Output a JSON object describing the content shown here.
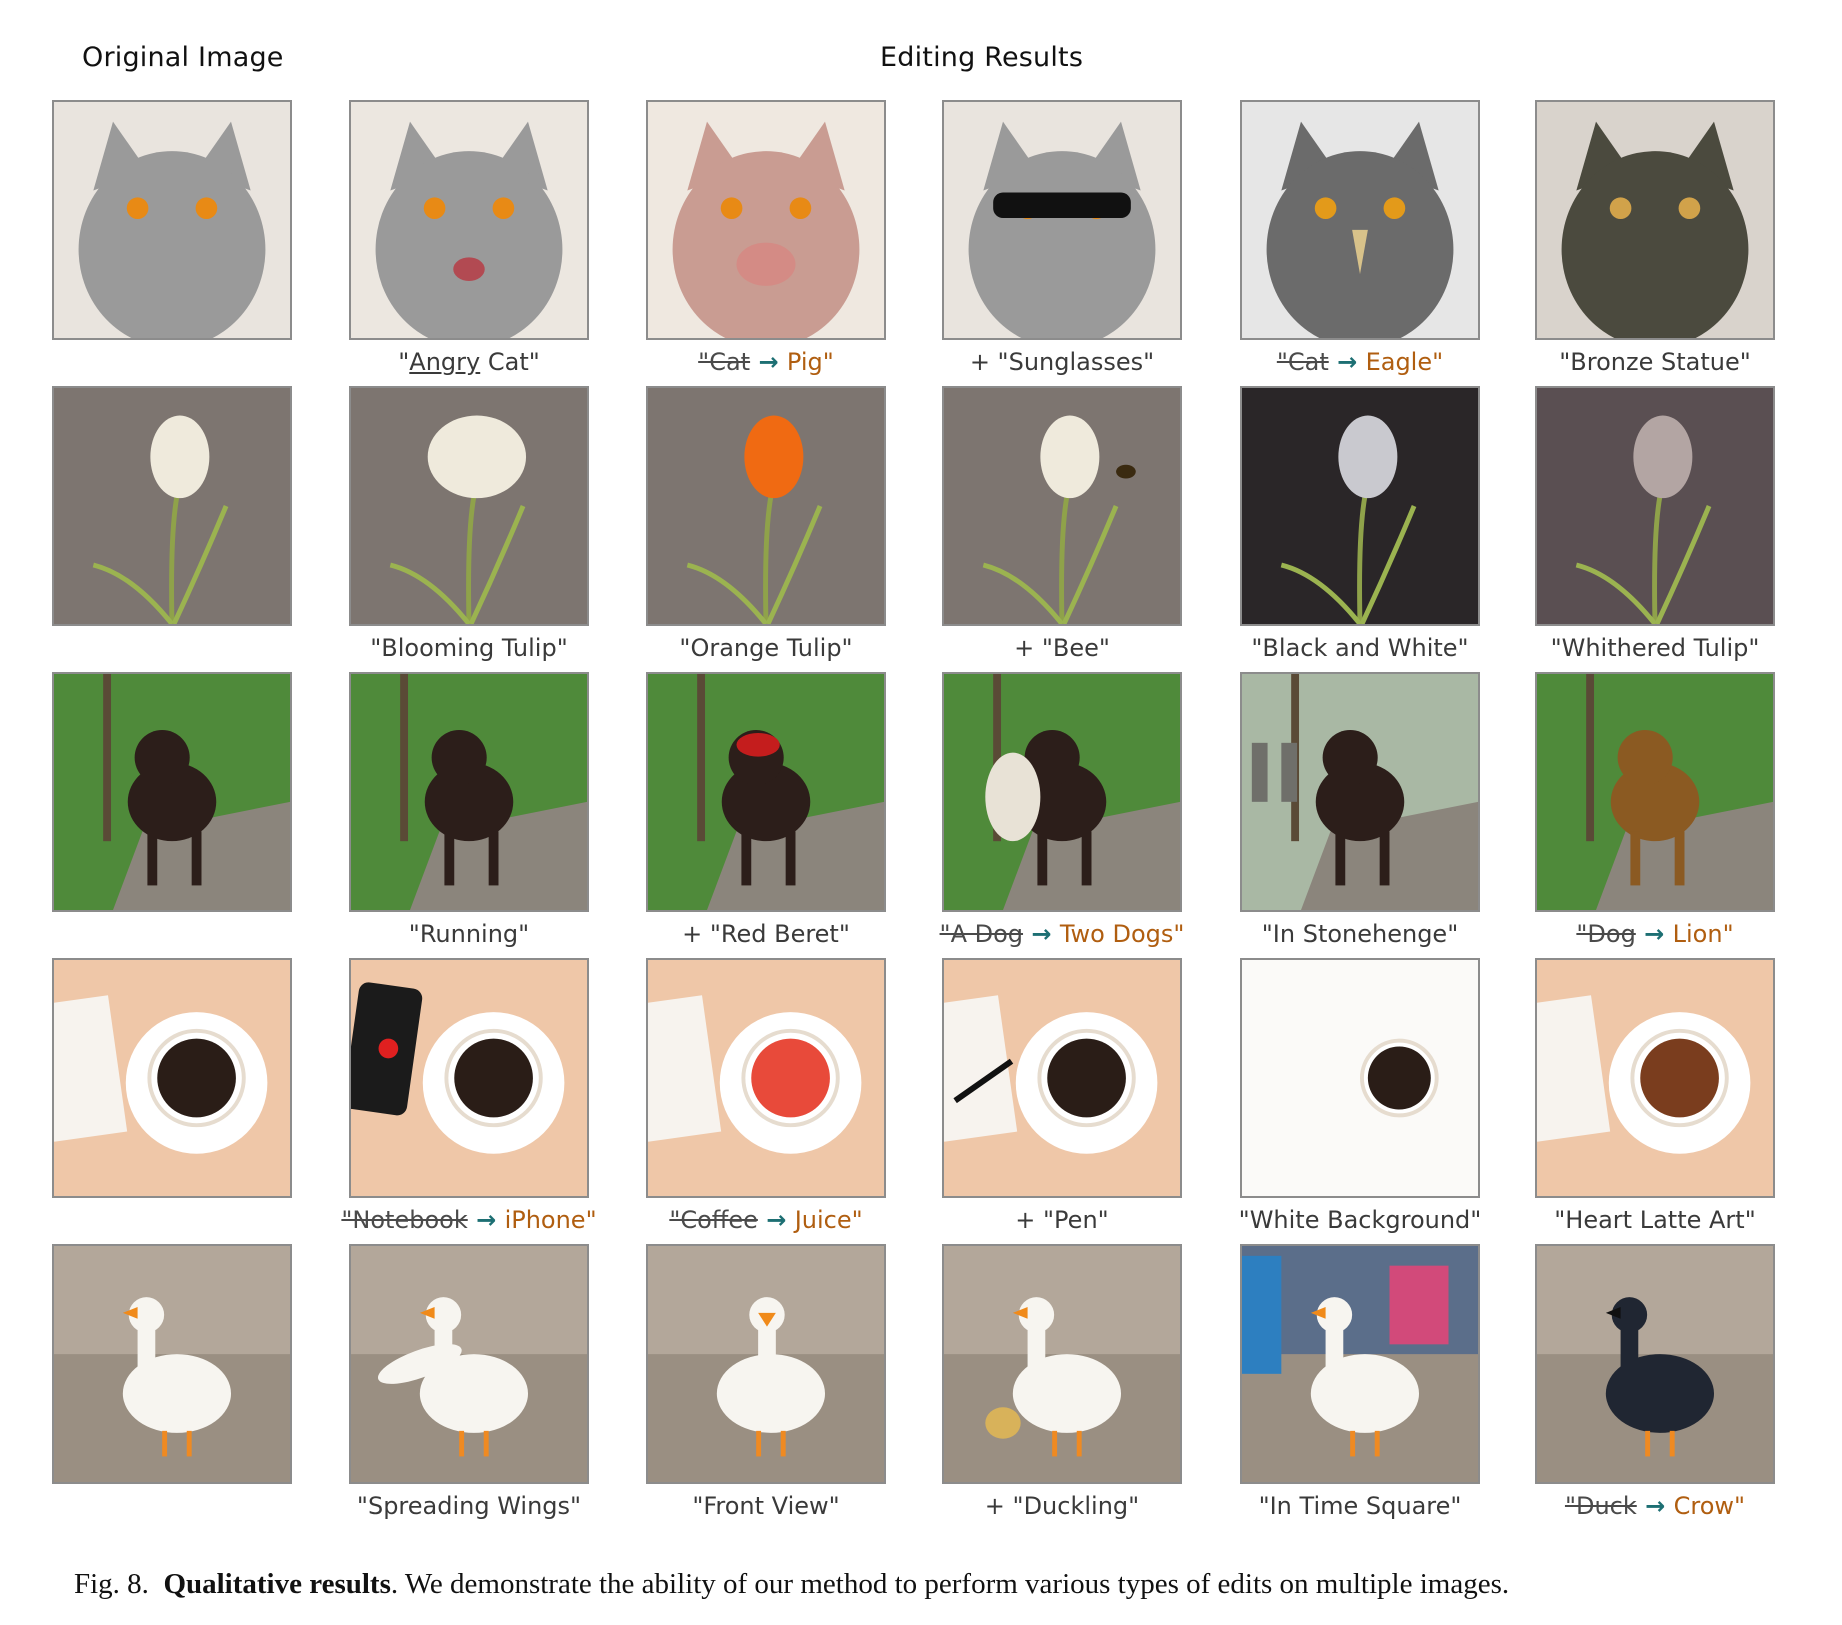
{
  "headers": {
    "original": "Original Image",
    "editing": "Editing Results"
  },
  "rows": [
    {
      "subject": "cat",
      "captions": [
        "",
        {
          "pre": "\"",
          "ul": "Angry",
          "post": " Cat\""
        },
        {
          "old": "\"Cat",
          "new": "Pig\""
        },
        "+ \"Sunglasses\"",
        {
          "old": "\"Cat",
          "new": "Eagle\""
        },
        "\"Bronze Statue\""
      ]
    },
    {
      "subject": "tulip",
      "captions": [
        "",
        "\"Blooming Tulip\"",
        "\"Orange Tulip\"",
        "+ \"Bee\"",
        "\"Black and White\"",
        "\"Whithered Tulip\""
      ]
    },
    {
      "subject": "dog",
      "captions": [
        "",
        "\"Running\"",
        "+ \"Red Beret\"",
        {
          "old": "\"A Dog",
          "new": "Two Dogs\""
        },
        "\"In Stonehenge\"",
        {
          "old": "\"Dog",
          "new": "Lion\""
        }
      ]
    },
    {
      "subject": "coffee",
      "captions": [
        "",
        {
          "old": "\"Notebook",
          "new": "iPhone\""
        },
        {
          "old": "\"Coffee",
          "new": "Juice\""
        },
        "+ \"Pen\"",
        "\"White Background\"",
        "\"Heart Latte Art\""
      ]
    },
    {
      "subject": "duck",
      "captions": [
        "",
        "\"Spreading Wings\"",
        "\"Front View\"",
        "+ \"Duckling\"",
        "\"In Time Square\"",
        {
          "old": "\"Duck",
          "new": "Crow\""
        }
      ]
    }
  ],
  "figure_caption": {
    "label": "Fig. 8.",
    "bold": "Qualitative results",
    "rest": ". We demonstrate the ability of our method to perform various types of edits on multiple images."
  },
  "colors": {
    "new_word": "#b05e10",
    "arrow": "#1d6f73",
    "frame": "#8c8c8c"
  }
}
